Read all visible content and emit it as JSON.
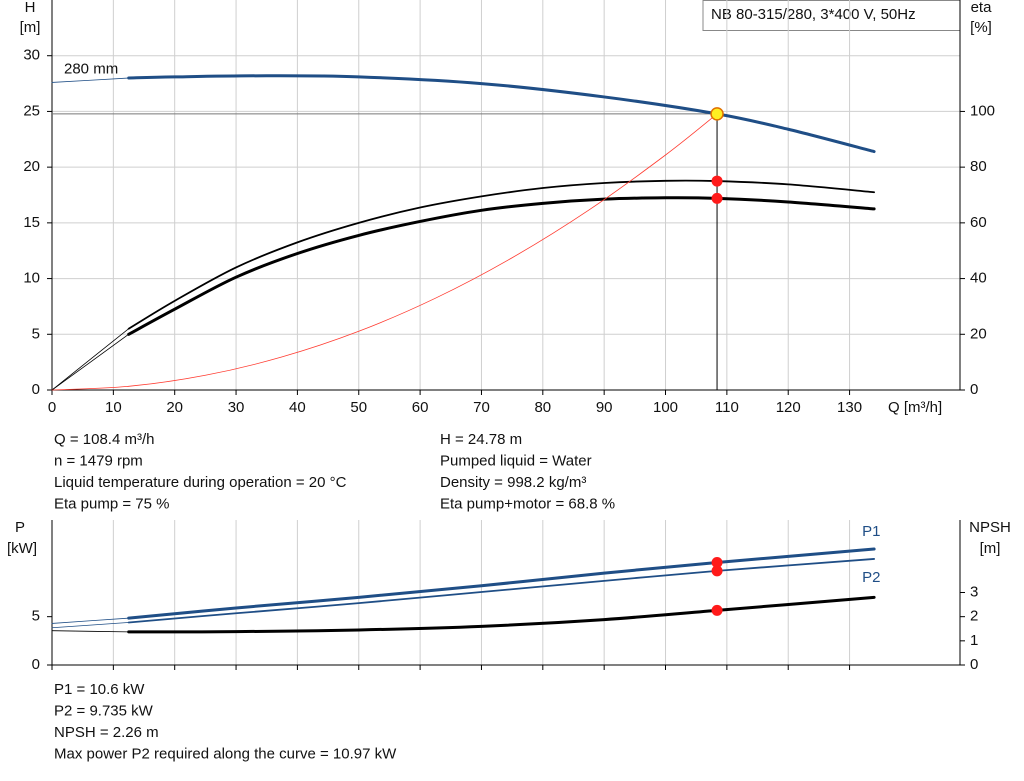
{
  "chart_data": [
    {
      "type": "line",
      "title": "NB 80-315/280, 3*400 V, 50Hz",
      "x_label": "Q [m³/h]",
      "y_label": [
        "H",
        "[m]"
      ],
      "y2_label": [
        "eta",
        "[%]"
      ],
      "xlim": [
        0,
        148
      ],
      "xticks": [
        0,
        10,
        20,
        30,
        40,
        50,
        60,
        70,
        80,
        90,
        100,
        110,
        120,
        130
      ],
      "ylim": [
        0,
        35
      ],
      "yticks": [
        0,
        5,
        10,
        15,
        20,
        25,
        30
      ],
      "y2lim": [
        0,
        140
      ],
      "y2ticks": [
        0,
        20,
        40,
        60,
        80,
        100
      ],
      "grid": true,
      "operating_point": {
        "x": 108.4,
        "y": 24.78
      },
      "series": [
        {
          "name": "280 mm",
          "color": "#1f4e86",
          "weight": "thick",
          "axis": "y",
          "x": [
            0,
            12.5,
            20,
            35,
            50,
            70,
            90,
            108.4,
            120,
            134
          ],
          "values": [
            27.6,
            28,
            28.1,
            28.2,
            28.1,
            27.5,
            26.3,
            24.78,
            23.4,
            21.4
          ]
        },
        {
          "color": "#000000",
          "weight": "medium",
          "axis": "y2",
          "x": [
            0,
            12.5,
            20,
            30,
            40,
            50,
            60,
            70,
            80,
            90,
            100,
            108.4,
            120,
            134
          ],
          "values": [
            0,
            22,
            32,
            44,
            53,
            60,
            65.5,
            69.5,
            72.5,
            74.3,
            75.1,
            75,
            73.8,
            71
          ]
        },
        {
          "color": "#000000",
          "weight": "thick",
          "axis": "y2",
          "x": [
            0,
            12.5,
            20,
            30,
            40,
            50,
            60,
            70,
            80,
            90,
            100,
            108.4,
            120,
            134
          ],
          "values": [
            0,
            20,
            29,
            40.5,
            49,
            55.5,
            60.5,
            64.5,
            67,
            68.5,
            69,
            68.8,
            67.5,
            65
          ]
        },
        {
          "color": "#ff3b30",
          "weight": "thin",
          "axis": "y",
          "x": [
            0,
            12.5,
            25,
            37.5,
            50,
            62.5,
            75,
            87.5,
            100,
            108.4
          ],
          "values": [
            0,
            0.33,
            1.32,
            2.97,
            5.27,
            8.24,
            11.87,
            16.15,
            21.09,
            24.78
          ]
        }
      ]
    },
    {
      "type": "line",
      "y_label": [
        "P",
        "[kW]"
      ],
      "y2_label": [
        "NPSH",
        "[m]"
      ],
      "xlim": [
        0,
        148
      ],
      "xticks": [
        0,
        10,
        20,
        30,
        40,
        50,
        60,
        70,
        80,
        90,
        100,
        110,
        120,
        130
      ],
      "ylim": [
        0,
        15
      ],
      "yticks": [
        0,
        5
      ],
      "y2lim": [
        0,
        6
      ],
      "y2ticks": [
        0,
        1,
        2,
        3
      ],
      "grid": true,
      "operating_point": {
        "x": 108.4
      },
      "series": [
        {
          "name": "P1",
          "color": "#1f4e86",
          "weight": "thick",
          "axis": "y",
          "x": [
            0,
            12.5,
            30,
            50,
            70,
            90,
            108.4,
            134
          ],
          "values": [
            4.3,
            4.85,
            5.9,
            7.0,
            8.2,
            9.5,
            10.6,
            12.0
          ]
        },
        {
          "name": "P2",
          "color": "#1f4e86",
          "weight": "medium",
          "axis": "y",
          "x": [
            0,
            12.5,
            30,
            50,
            70,
            90,
            108.4,
            134
          ],
          "values": [
            3.85,
            4.4,
            5.35,
            6.4,
            7.55,
            8.7,
            9.735,
            10.97
          ]
        },
        {
          "color": "#000000",
          "weight": "thick",
          "axis": "y2",
          "x": [
            0,
            12.5,
            30,
            50,
            70,
            90,
            108.4,
            134
          ],
          "values": [
            1.42,
            1.37,
            1.38,
            1.45,
            1.6,
            1.88,
            2.26,
            2.8
          ]
        }
      ]
    }
  ],
  "info_top": {
    "left": [
      "Q = 108.4 m³/h",
      "n = 1479 rpm",
      "Liquid temperature during operation = 20 °C",
      "Eta pump = 75 %"
    ],
    "right": [
      "H = 24.78 m",
      "Pumped liquid = Water",
      "Density = 998.2 kg/m³",
      "Eta pump+motor = 68.8 %"
    ]
  },
  "info_bottom": [
    "P1 = 10.6 kW",
    "P2 = 9.735 kW",
    "NPSH = 2.26 m",
    "Max power P2 required along the curve = 10.97 kW"
  ]
}
